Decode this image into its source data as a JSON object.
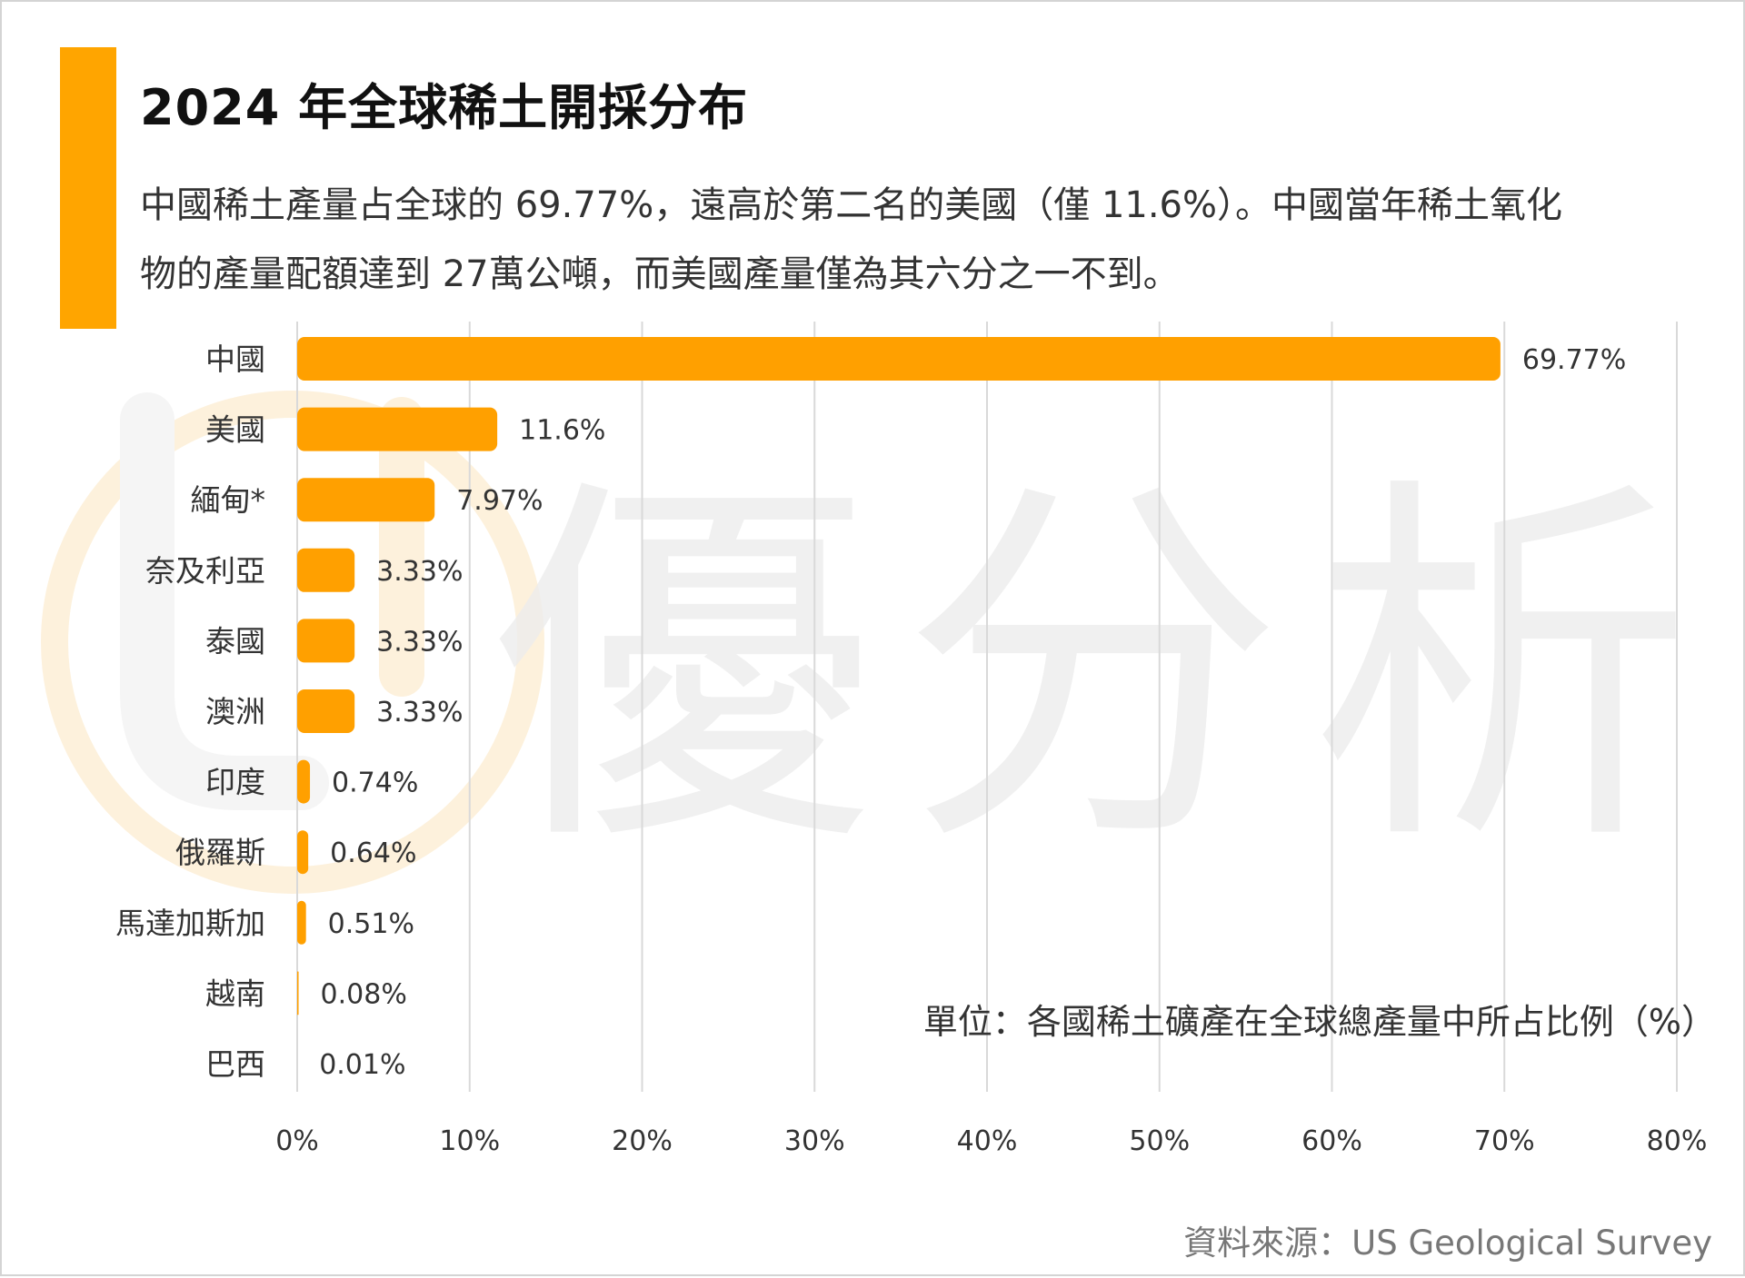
{
  "title": "2024 年全球稀土開採分布",
  "subtitle": "中國稀土產量占全球的 69.77%，遠高於第二名的美國（僅 11.6%）。中國當年稀土氧化物的產量配額達到 27萬公噸，而美國產量僅為其六分之一不到。",
  "unit_note": "單位：各國稀土礦產在全球總產量中所占比例（%）",
  "source_note": "資料來源：US Geological Survey",
  "watermark": "優分析",
  "colors": {
    "accent": "#ffa500",
    "bar": "#ffa000",
    "grid": "#d9d9d9"
  },
  "chart_data": {
    "type": "bar",
    "orientation": "horizontal",
    "title": "2024 年全球稀土開採分布",
    "categories": [
      "中國",
      "美國",
      "緬甸*",
      "奈及利亞",
      "泰國",
      "澳洲",
      "印度",
      "俄羅斯",
      "馬達加斯加",
      "越南",
      "巴西"
    ],
    "series": [
      {
        "values": [
          69.77,
          11.6,
          7.97,
          3.33,
          3.33,
          3.33,
          0.74,
          0.64,
          0.51,
          0.08,
          0.01
        ],
        "labels": [
          "69.77%",
          "11.6%",
          "7.97%",
          "3.33%",
          "3.33%",
          "3.33%",
          "0.74%",
          "0.64%",
          "0.51%",
          "0.08%",
          "0.01%"
        ]
      }
    ],
    "xlim": [
      0,
      80
    ],
    "xticks": [
      0,
      10,
      20,
      30,
      40,
      50,
      60,
      70,
      80
    ],
    "xtick_labels": [
      "0%",
      "10%",
      "20%",
      "30%",
      "40%",
      "50%",
      "60%",
      "70%",
      "80%"
    ],
    "grid": "vertical",
    "legend": "none"
  }
}
